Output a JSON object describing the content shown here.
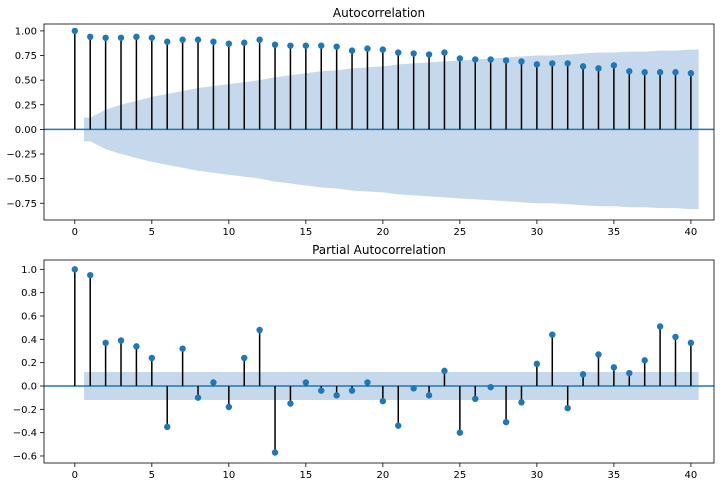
{
  "colors": {
    "marker": "#1f77b4",
    "confidence_band": "#c6d9ec",
    "zero_line": "#1f77b4",
    "stem": "#000000"
  },
  "chart_data": [
    {
      "type": "stem",
      "title": "Autocorrelation",
      "xlabel": "",
      "ylabel": "",
      "xlim": [
        -2,
        41.5
      ],
      "ylim": [
        -0.92,
        1.07
      ],
      "xticks": [
        0,
        5,
        10,
        15,
        20,
        25,
        30,
        35,
        40
      ],
      "yticks": [
        -0.75,
        -0.5,
        -0.25,
        0.0,
        0.25,
        0.5,
        0.75,
        1.0
      ],
      "ytick_labels": [
        "−0.75",
        "−0.50",
        "−0.25",
        "0.00",
        "0.25",
        "0.50",
        "0.75",
        "1.00"
      ],
      "grid": false,
      "lags": [
        0,
        1,
        2,
        3,
        4,
        5,
        6,
        7,
        8,
        9,
        10,
        11,
        12,
        13,
        14,
        15,
        16,
        17,
        18,
        19,
        20,
        21,
        22,
        23,
        24,
        25,
        26,
        27,
        28,
        29,
        30,
        31,
        32,
        33,
        34,
        35,
        36,
        37,
        38,
        39,
        40
      ],
      "values": [
        1.0,
        0.94,
        0.93,
        0.93,
        0.94,
        0.93,
        0.89,
        0.91,
        0.91,
        0.89,
        0.87,
        0.88,
        0.91,
        0.86,
        0.85,
        0.85,
        0.85,
        0.84,
        0.8,
        0.82,
        0.81,
        0.78,
        0.77,
        0.76,
        0.78,
        0.72,
        0.71,
        0.71,
        0.7,
        0.69,
        0.66,
        0.67,
        0.67,
        0.64,
        0.62,
        0.65,
        0.59,
        0.58,
        0.58,
        0.58,
        0.57
      ],
      "confidence_band": {
        "lags": [
          0.6,
          1,
          2,
          3,
          4,
          5,
          6,
          7,
          8,
          9,
          10,
          11,
          12,
          13,
          14,
          15,
          16,
          17,
          18,
          19,
          20,
          21,
          22,
          23,
          24,
          25,
          26,
          27,
          28,
          29,
          30,
          31,
          32,
          33,
          34,
          35,
          36,
          37,
          38,
          39,
          40,
          40.5
        ],
        "upper": [
          0.12,
          0.12,
          0.2,
          0.25,
          0.29,
          0.33,
          0.36,
          0.39,
          0.42,
          0.44,
          0.46,
          0.48,
          0.5,
          0.53,
          0.55,
          0.57,
          0.59,
          0.6,
          0.62,
          0.63,
          0.64,
          0.66,
          0.67,
          0.68,
          0.69,
          0.7,
          0.71,
          0.72,
          0.73,
          0.74,
          0.75,
          0.75,
          0.76,
          0.77,
          0.78,
          0.78,
          0.79,
          0.79,
          0.8,
          0.8,
          0.81,
          0.81
        ]
      }
    },
    {
      "type": "stem",
      "title": "Partial Autocorrelation",
      "xlabel": "",
      "ylabel": "",
      "xlim": [
        -2,
        41.5
      ],
      "ylim": [
        -0.66,
        1.08
      ],
      "xticks": [
        0,
        5,
        10,
        15,
        20,
        25,
        30,
        35,
        40
      ],
      "yticks": [
        -0.6,
        -0.4,
        -0.2,
        0.0,
        0.2,
        0.4,
        0.6,
        0.8,
        1.0
      ],
      "ytick_labels": [
        "−0.6",
        "−0.4",
        "−0.2",
        "0.0",
        "0.2",
        "0.4",
        "0.6",
        "0.8",
        "1.0"
      ],
      "grid": false,
      "lags": [
        0,
        1,
        2,
        3,
        4,
        5,
        6,
        7,
        8,
        9,
        10,
        11,
        12,
        13,
        14,
        15,
        16,
        17,
        18,
        19,
        20,
        21,
        22,
        23,
        24,
        25,
        26,
        27,
        28,
        29,
        30,
        31,
        32,
        33,
        34,
        35,
        36,
        37,
        38,
        39,
        40
      ],
      "values": [
        1.0,
        0.95,
        0.37,
        0.39,
        0.34,
        0.24,
        -0.35,
        0.32,
        -0.1,
        0.03,
        -0.18,
        0.24,
        0.48,
        -0.57,
        -0.15,
        0.03,
        -0.04,
        -0.08,
        -0.04,
        0.03,
        -0.13,
        -0.34,
        -0.02,
        -0.08,
        0.13,
        -0.4,
        -0.11,
        -0.01,
        -0.31,
        -0.14,
        0.19,
        0.44,
        -0.19,
        0.1,
        0.27,
        0.16,
        0.11,
        0.22,
        0.51,
        0.42,
        0.37
      ],
      "confidence_band": {
        "lags": [
          0.6,
          40.5
        ],
        "upper": [
          0.12,
          0.12
        ]
      }
    }
  ]
}
